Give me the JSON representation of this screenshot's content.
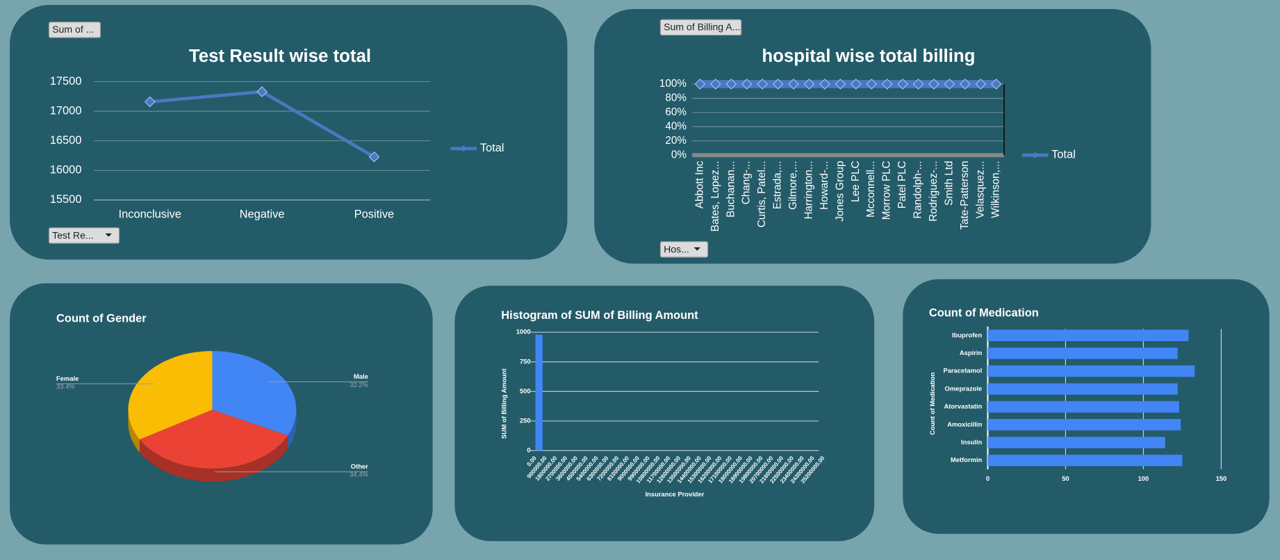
{
  "chart_data": [
    {
      "type": "line",
      "title": "Test Result wise total",
      "controls": [
        "Sum of ...",
        "Test Re..."
      ],
      "categories": [
        "Inconclusive",
        "Negative",
        "Positive"
      ],
      "series": [
        {
          "name": "Total",
          "color": "#4a78c2",
          "values": [
            17160,
            17330,
            16230
          ]
        }
      ],
      "ylim": [
        15500,
        17500
      ],
      "yticks": [
        15500,
        16000,
        16500,
        17000,
        17500
      ],
      "grid": true,
      "legend": "right"
    },
    {
      "type": "line",
      "title": "hospital wise total billing",
      "controls": [
        "Sum of Billing A...",
        "Hos..."
      ],
      "categories": [
        "Abbott Inc",
        "Bates, Lopez...",
        "Buchanan...",
        "Chang-...",
        "Curtis, Patel...",
        "Estrada,...",
        "Gilmore,...",
        "Harrington...",
        "Howard-...",
        "Jones Group",
        "Lee PLC",
        "Mcconnell...",
        "Morrow PLC",
        "Patel PLC",
        "Randolph-...",
        "Rodriguez-...",
        "Smith Ltd",
        "Tate-Patterson",
        "Velasquez...",
        "Wilkinson,..."
      ],
      "series": [
        {
          "name": "Total",
          "color": "#4a78c2",
          "values": [
            100,
            100,
            100,
            100,
            100,
            100,
            100,
            100,
            100,
            100,
            100,
            100,
            100,
            100,
            100,
            100,
            100,
            100,
            100,
            100
          ]
        }
      ],
      "ylim": [
        0,
        100
      ],
      "yticks": [
        {
          "value": 0,
          "label": "0%"
        },
        {
          "value": 20,
          "label": "20%"
        },
        {
          "value": 40,
          "label": "40%"
        },
        {
          "value": 60,
          "label": "60%"
        },
        {
          "value": 80,
          "label": "80%"
        },
        {
          "value": 100,
          "label": "100%"
        }
      ],
      "grid": true,
      "legend": "right"
    },
    {
      "type": "pie",
      "title": "Count of Gender",
      "categories": [
        "Male",
        "Other",
        "Female"
      ],
      "values": [
        32.2,
        34.4,
        33.4
      ],
      "value_labels": [
        "32.2%",
        "34.4%",
        "33.4%"
      ],
      "colors": [
        "#4285f4",
        "#ea4335",
        "#fbbc04"
      ]
    },
    {
      "type": "histogram",
      "title": "Histogram of SUM of Billing Amount",
      "xlabel": "Insurance Provider",
      "ylabel": "SUM of Billing Amount",
      "bins": [
        {
          "value": 0,
          "label": "0.00"
        },
        {
          "value": 900000,
          "label": "900000.00"
        },
        {
          "value": 1800000,
          "label": "1800000.00"
        },
        {
          "value": 2700000,
          "label": "2700000.00"
        },
        {
          "value": 3600000,
          "label": "3600000.00"
        },
        {
          "value": 4500000,
          "label": "4500000.00"
        },
        {
          "value": 5400000,
          "label": "5400000.00"
        },
        {
          "value": 6300000,
          "label": "6300000.00"
        },
        {
          "value": 7200000,
          "label": "7200000.00"
        },
        {
          "value": 8100000,
          "label": "8100000.00"
        },
        {
          "value": 9000000,
          "label": "9000000.00"
        },
        {
          "value": 9900000,
          "label": "9900000.00"
        },
        {
          "value": 10800000,
          "label": "10800000.00"
        },
        {
          "value": 11700000,
          "label": "11700000.00"
        },
        {
          "value": 12600000,
          "label": "12600000.00"
        },
        {
          "value": 13500000,
          "label": "13500000.00"
        },
        {
          "value": 14400000,
          "label": "14400000.00"
        },
        {
          "value": 15300000,
          "label": "15300000.00"
        },
        {
          "value": 16200000,
          "label": "16200000.00"
        },
        {
          "value": 17100000,
          "label": "17100000.00"
        },
        {
          "value": 18000000,
          "label": "18000000.00"
        },
        {
          "value": 18900000,
          "label": "18900000.00"
        },
        {
          "value": 19800000,
          "label": "19800000.00"
        },
        {
          "value": 20700000,
          "label": "20700000.00"
        },
        {
          "value": 21600000,
          "label": "21600000.00"
        },
        {
          "value": 22500000,
          "label": "22500000.00"
        },
        {
          "value": 23400000,
          "label": "23400000.00"
        },
        {
          "value": 24300000,
          "label": "24300000.00"
        },
        {
          "value": 25200000,
          "label": "25200000.00"
        }
      ],
      "counts": [
        980,
        0,
        0,
        0,
        0,
        0,
        0,
        0,
        0,
        0,
        0,
        0,
        0,
        0,
        0,
        0,
        0,
        0,
        0,
        0,
        0,
        0,
        0,
        0,
        0,
        0,
        0,
        0
      ],
      "color": "#4285f4",
      "xlim": [
        0,
        25200000
      ],
      "ylim": [
        0,
        1000
      ],
      "yticks": [
        0,
        250,
        500,
        750,
        1000
      ],
      "grid": true
    },
    {
      "type": "barh",
      "title": "Count of Medication",
      "ylabel": "Count of Medication",
      "categories": [
        "Ibuprofen",
        "Aspirin",
        "Paracetamol",
        "Omeprazole",
        "Atorvastatin",
        "Amoxicillin",
        "Insulin",
        "Metformin"
      ],
      "values": [
        129,
        122,
        133,
        122,
        123,
        124,
        114,
        125
      ],
      "color": "#4285f4",
      "xlim": [
        0,
        150
      ],
      "xticks": [
        0,
        50,
        100,
        150
      ],
      "grid": true
    }
  ]
}
